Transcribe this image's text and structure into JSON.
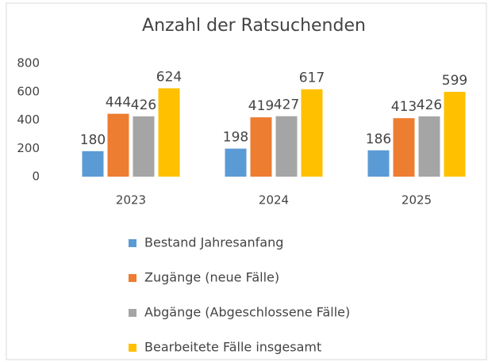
{
  "chart_data": {
    "type": "bar",
    "title": "Anzahl der Ratsuchenden",
    "categories": [
      "2023",
      "2024",
      "2025"
    ],
    "series": [
      {
        "name": "Bestand Jahresanfang",
        "color": "#5b9bd5",
        "values": [
          180,
          198,
          186
        ]
      },
      {
        "name": "Zugänge (neue Fälle)",
        "color": "#ed7d31",
        "values": [
          444,
          419,
          413
        ]
      },
      {
        "name": "Abgänge (Abgeschlossene Fälle)",
        "color": "#a5a5a5",
        "values": [
          426,
          427,
          426
        ]
      },
      {
        "name": "Bearbeitete Fälle insgesamt",
        "color": "#ffc000",
        "values": [
          624,
          617,
          599
        ]
      }
    ],
    "ylim": [
      0,
      800
    ],
    "yticks": [
      0,
      200,
      400,
      600,
      800
    ],
    "grid": false,
    "legend": "bottom",
    "data_labels": true
  }
}
